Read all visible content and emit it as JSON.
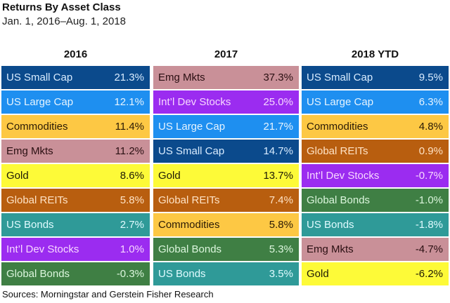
{
  "header": {
    "title": "Returns By Asset Class",
    "subtitle": "Jan. 1, 2016–Aug. 1, 2018"
  },
  "footer": {
    "source": "Sources: Morningstar and Gerstein Fisher Research"
  },
  "asset_colors": {
    "US Small Cap": {
      "bg": "#0b4a8c",
      "fg": "#d9ecff"
    },
    "US Large Cap": {
      "bg": "#1e8ff0",
      "fg": "#e6f4ff"
    },
    "Commodities": {
      "bg": "#fdc844",
      "fg": "#2a1a05"
    },
    "Emg Mkts": {
      "bg": "#c99098",
      "fg": "#2a0f12"
    },
    "Gold": {
      "bg": "#fdfa38",
      "fg": "#1e1a05"
    },
    "Global REITs": {
      "bg": "#b85e0f",
      "fg": "#ffe3c6"
    },
    "US Bonds": {
      "bg": "#2f9a98",
      "fg": "#e0fbff"
    },
    "Int’l Dev Stocks": {
      "bg": "#9b2cf0",
      "fg": "#f8d8ff"
    },
    "Global Bonds": {
      "bg": "#3f7f44",
      "fg": "#dcf6dd"
    }
  },
  "chart_data": {
    "type": "table",
    "title": "Returns By Asset Class",
    "subtitle": "Jan. 1, 2016–Aug. 1, 2018",
    "columns": [
      {
        "header": "2016",
        "rows": [
          {
            "asset": "US Small Cap",
            "value": "21.3%"
          },
          {
            "asset": "US Large Cap",
            "value": "12.1%"
          },
          {
            "asset": "Commodities",
            "value": "11.4%"
          },
          {
            "asset": "Emg Mkts",
            "value": "11.2%"
          },
          {
            "asset": "Gold",
            "value": "8.6%"
          },
          {
            "asset": "Global REITs",
            "value": "5.8%"
          },
          {
            "asset": "US Bonds",
            "value": "2.7%"
          },
          {
            "asset": "Int’l Dev Stocks",
            "value": "1.0%"
          },
          {
            "asset": "Global Bonds",
            "value": "-0.3%"
          }
        ]
      },
      {
        "header": "2017",
        "rows": [
          {
            "asset": "Emg Mkts",
            "value": "37.3%"
          },
          {
            "asset": "Int’l Dev Stocks",
            "value": "25.0%"
          },
          {
            "asset": "US Large Cap",
            "value": "21.7%"
          },
          {
            "asset": "US Small Cap",
            "value": "14.7%"
          },
          {
            "asset": "Gold",
            "value": "13.7%"
          },
          {
            "asset": "Global REITs",
            "value": "7.4%"
          },
          {
            "asset": "Commodities",
            "value": "5.8%"
          },
          {
            "asset": "Global Bonds",
            "value": "5.3%"
          },
          {
            "asset": "US Bonds",
            "value": "3.5%"
          }
        ]
      },
      {
        "header": "2018 YTD",
        "rows": [
          {
            "asset": "US Small Cap",
            "value": "9.5%"
          },
          {
            "asset": "US Large Cap",
            "value": "6.3%"
          },
          {
            "asset": "Commodities",
            "value": "4.8%"
          },
          {
            "asset": "Global REITs",
            "value": "0.9%"
          },
          {
            "asset": "Int’l Dev Stocks",
            "value": "-0.7%"
          },
          {
            "asset": "Global Bonds",
            "value": "-1.0%"
          },
          {
            "asset": "US Bonds",
            "value": "-1.8%"
          },
          {
            "asset": "Emg Mkts",
            "value": "-4.7%"
          },
          {
            "asset": "Gold",
            "value": "-6.2%"
          }
        ]
      }
    ],
    "source": "Sources: Morningstar and Gerstein Fisher Research"
  }
}
